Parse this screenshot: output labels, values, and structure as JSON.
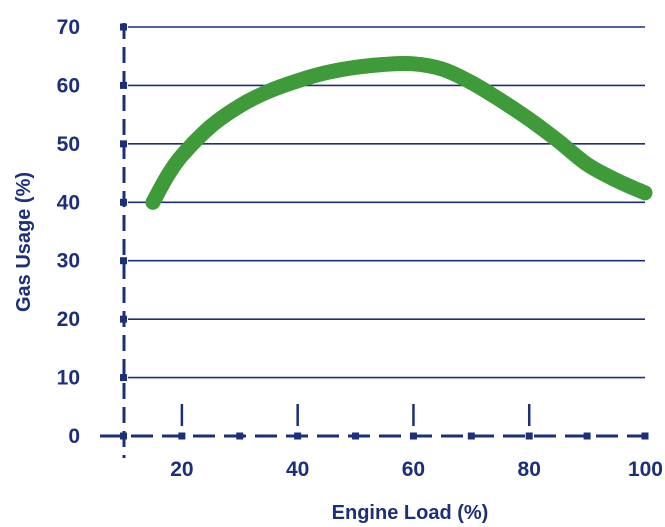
{
  "chart_data": {
    "type": "line",
    "title": "",
    "xlabel": "Engine Load (%)",
    "ylabel": "Gas Usage (%)",
    "xlim": [
      10,
      100
    ],
    "ylim": [
      0,
      70
    ],
    "x_ticks": [
      20,
      40,
      60,
      80,
      100
    ],
    "y_ticks": [
      0,
      10,
      20,
      30,
      40,
      50,
      60,
      70
    ],
    "grid": true,
    "legend": "none",
    "series": [
      {
        "x": [
          15,
          17.5,
          20,
          25,
          30,
          35,
          40,
          45,
          50,
          55,
          60,
          65,
          70,
          75,
          80,
          85,
          90,
          95,
          100
        ],
        "values": [
          40,
          44.5,
          48,
          53,
          56.5,
          59,
          60.8,
          62.2,
          63.1,
          63.6,
          63.7,
          62.8,
          60.5,
          57.5,
          54.2,
          50.5,
          46.5,
          43.8,
          41.6
        ]
      }
    ],
    "colors": {
      "axis": "#1b2f7a",
      "grid": "#1b2f7a",
      "line": "#3f9a39",
      "text": "#1b2f7a"
    }
  }
}
